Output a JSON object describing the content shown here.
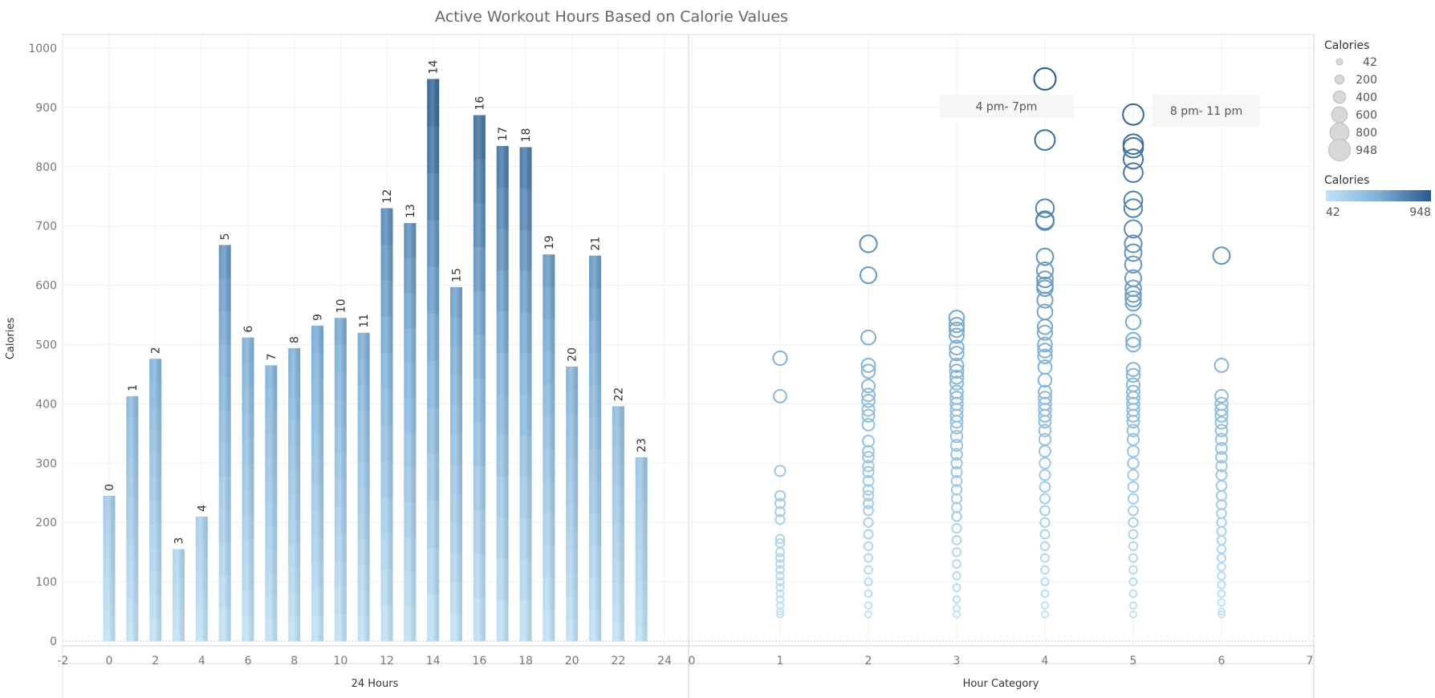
{
  "chart_data": {
    "type": "bar",
    "title": "Active Workout Hours Based on Calorie Values",
    "ylabel": "Calories",
    "ylim": [
      0,
      1000
    ],
    "y_ticks": [
      0,
      100,
      200,
      300,
      400,
      500,
      600,
      700,
      800,
      900,
      1000
    ],
    "left_panel": {
      "type": "bar",
      "xlabel": "24 Hours",
      "xlim": [
        -2,
        24
      ],
      "x_ticks": [
        -2,
        0,
        2,
        4,
        6,
        8,
        10,
        12,
        14,
        16,
        18,
        20,
        22,
        24
      ],
      "categories": [
        0,
        1,
        2,
        3,
        4,
        5,
        6,
        7,
        8,
        9,
        10,
        11,
        12,
        13,
        14,
        15,
        16,
        17,
        18,
        19,
        20,
        21,
        22,
        23
      ],
      "labels": [
        "0",
        "1",
        "2",
        "3",
        "4",
        "5",
        "6",
        "7",
        "8",
        "9",
        "10",
        "11",
        "12",
        "13",
        "14",
        "15",
        "16",
        "17",
        "18",
        "19",
        "20",
        "21",
        "22",
        "23"
      ],
      "values": [
        245,
        413,
        476,
        155,
        210,
        668,
        512,
        465,
        494,
        532,
        545,
        520,
        730,
        705,
        948,
        597,
        887,
        835,
        833,
        652,
        463,
        650,
        396,
        310
      ]
    },
    "right_panel": {
      "type": "scatter",
      "xlabel": "Hour Category",
      "xlim": [
        0,
        7
      ],
      "x_ticks": [
        0,
        1,
        2,
        3,
        4,
        5,
        6,
        7
      ],
      "series": [
        {
          "x": 1,
          "values": [
            477,
            413,
            287,
            245,
            232,
            218,
            205,
            172,
            165,
            150,
            140,
            130,
            120,
            110,
            100,
            90,
            80,
            70,
            60,
            50,
            45
          ]
        },
        {
          "x": 2,
          "values": [
            670,
            617,
            512,
            465,
            455,
            430,
            415,
            405,
            390,
            380,
            365,
            337,
            320,
            310,
            295,
            285,
            270,
            255,
            245,
            232,
            220,
            200,
            180,
            160,
            140,
            120,
            100,
            80,
            60,
            45
          ]
        },
        {
          "x": 3,
          "values": [
            545,
            533,
            525,
            515,
            495,
            485,
            465,
            455,
            445,
            435,
            420,
            410,
            400,
            390,
            380,
            370,
            360,
            345,
            330,
            315,
            300,
            285,
            270,
            255,
            240,
            225,
            210,
            190,
            170,
            150,
            130,
            110,
            90,
            70,
            55,
            45
          ]
        },
        {
          "x": 4,
          "values": [
            948,
            845,
            730,
            710,
            708,
            648,
            625,
            610,
            600,
            595,
            575,
            555,
            530,
            520,
            500,
            490,
            480,
            462,
            440,
            420,
            410,
            400,
            390,
            380,
            370,
            355,
            340,
            320,
            300,
            280,
            260,
            240,
            220,
            200,
            180,
            160,
            140,
            120,
            100,
            80,
            60,
            45
          ]
        },
        {
          "x": 5,
          "values": [
            888,
            838,
            832,
            813,
            790,
            743,
            730,
            695,
            670,
            655,
            635,
            612,
            595,
            585,
            577,
            570,
            538,
            508,
            500,
            458,
            448,
            432,
            420,
            410,
            400,
            390,
            380,
            370,
            355,
            340,
            320,
            300,
            280,
            260,
            240,
            220,
            200,
            180,
            160,
            140,
            120,
            100,
            80,
            60,
            45
          ]
        },
        {
          "x": 6,
          "values": [
            650,
            465,
            413,
            400,
            390,
            380,
            368,
            355,
            340,
            325,
            310,
            295,
            280,
            262,
            245,
            230,
            215,
            200,
            185,
            170,
            155,
            140,
            125,
            110,
            95,
            80,
            65,
            50,
            45
          ]
        }
      ]
    },
    "annotations": [
      {
        "text": "4 pm- 7pm"
      },
      {
        "text": "8 pm- 11 pm"
      }
    ],
    "legend_size": {
      "title": "Calories",
      "values": [
        42,
        200,
        400,
        600,
        800,
        948
      ],
      "labels": [
        "42",
        "200",
        "400",
        "600",
        "800",
        "948"
      ]
    },
    "legend_color": {
      "title": "Calories",
      "min_label": "42",
      "max_label": "948",
      "min_value": 42,
      "max_value": 948,
      "colors": [
        "#c2e2f5",
        "#7fb0d8",
        "#2a5a8c"
      ]
    },
    "grid": true
  }
}
